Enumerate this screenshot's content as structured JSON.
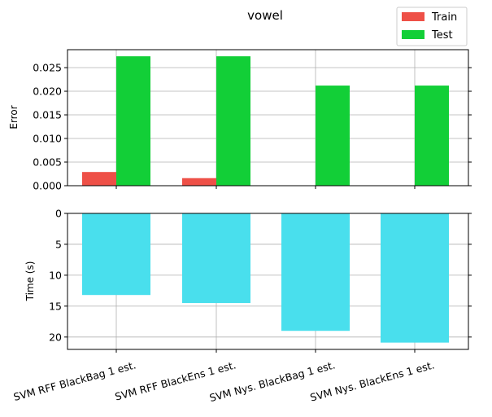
{
  "chart_data": [
    {
      "type": "bar",
      "title": "vowel",
      "ylabel": "Error",
      "categories": [
        "SVM RFF BlackBag 1 est.",
        "SVM RFF BlackEns 1 est.",
        "SVM Nys. BlackBag 1 est.",
        "SVM Nys. BlackEns 1 est."
      ],
      "series": [
        {
          "name": "Train",
          "color": "#ee5047",
          "values": [
            0.0029,
            0.0016,
            0.0,
            0.0
          ]
        },
        {
          "name": "Test",
          "color": "#12cf37",
          "values": [
            0.0274,
            0.0274,
            0.0212,
            0.0212
          ]
        }
      ],
      "yticks": [
        "0.000",
        "0.005",
        "0.010",
        "0.015",
        "0.020",
        "0.025"
      ],
      "ylim": [
        0,
        0.0288
      ],
      "grid": true,
      "legend_position": "top-right"
    },
    {
      "type": "bar",
      "ylabel": "Time (s)",
      "categories": [
        "SVM RFF BlackBag 1 est.",
        "SVM RFF BlackEns 1 est.",
        "SVM Nys. BlackBag 1 est.",
        "SVM Nys. BlackEns 1 est."
      ],
      "series": [
        {
          "color": "#49dfed",
          "values": [
            13.2,
            14.5,
            19.0,
            20.9
          ]
        }
      ],
      "yticks": [
        "0",
        "5",
        "10",
        "15",
        "20"
      ],
      "ylim": [
        22,
        0
      ],
      "inverted_y": true,
      "grid": true
    }
  ]
}
